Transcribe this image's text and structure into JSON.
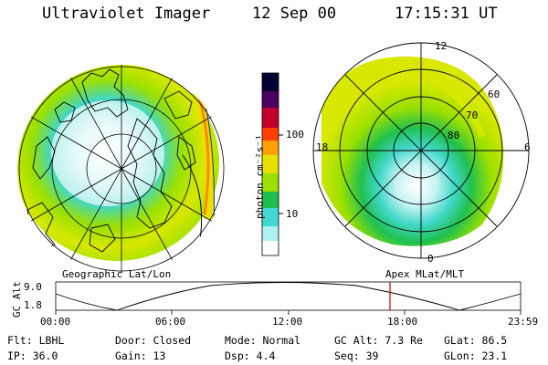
{
  "header": {
    "instrument": "Ultraviolet Imager",
    "date": "12 Sep 00",
    "time": "17:15:31 UT"
  },
  "left_map": {
    "caption": "Geographic Lat/Lon"
  },
  "right_map": {
    "caption": "Apex MLat/MLT",
    "mlt_labels": {
      "top": "12",
      "bottom": "0",
      "left": "18",
      "right": "6"
    },
    "lat_labels": [
      "60",
      "70",
      "80"
    ]
  },
  "colorbar": {
    "unit_label": "photon cm⁻²s⁻¹",
    "ticks": [
      "100",
      "10"
    ],
    "colors": [
      "#000033",
      "#4a0060",
      "#c0002a",
      "#ff4000",
      "#ffa000",
      "#e8e000",
      "#9ae000",
      "#20c050",
      "#40d8d0",
      "#b0f0f0",
      "#ffffff"
    ]
  },
  "altitude_plot": {
    "ylabel": "GC Alt",
    "yticks": [
      "9.0",
      "1.8"
    ],
    "xticks": [
      "00:00",
      "06:00",
      "12:00",
      "18:00",
      "23:59"
    ],
    "current_marker_time": "17:15",
    "marker_color": "#cc0000"
  },
  "info": {
    "flt": "Flt: LBHL",
    "ip": "IP: 36.0",
    "door": "Door: Closed",
    "gain": "Gain: 13",
    "mode": "Mode: Normal",
    "dsp": "Dsp:    4.4",
    "gc_alt": "GC Alt: 7.3 Re",
    "seq": "Seq: 39",
    "glat": "GLat:   86.5",
    "glon": "GLon:   23.1"
  }
}
